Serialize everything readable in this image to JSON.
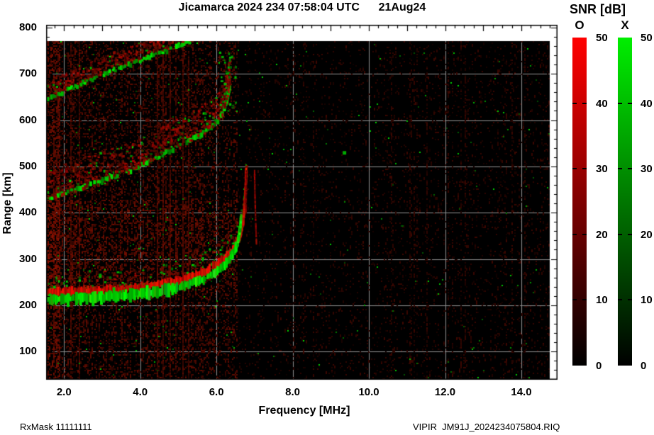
{
  "title": "Jicamarca 2024 234 07:58:04 UTC      21Aug24",
  "footer": {
    "left": "RxMask 11111111",
    "right": "VIPIR  JM91J_2024234075804.RIQ"
  },
  "colorbar": {
    "title": "SNR [dB]",
    "o_label": "O",
    "x_label": "X",
    "o_color": "#ff0000",
    "x_color": "#00ee00",
    "ticks": [
      0,
      10,
      20,
      30,
      40,
      50
    ],
    "range": [
      0,
      50
    ]
  },
  "chart_data": {
    "type": "heatmap",
    "title": "Jicamarca 2024 234 07:58:04 UTC 21Aug24",
    "xlabel": "Frequency [MHz]",
    "ylabel": "Range [km]",
    "xlim": [
      1.53,
      14.95
    ],
    "ylim": [
      39,
      806
    ],
    "grid": true,
    "background": "#000000",
    "grid_color": "#909090",
    "x_ticks": [
      {
        "v": 2,
        "label": "2.0"
      },
      {
        "v": 4,
        "label": "4.0"
      },
      {
        "v": 6,
        "label": "6.0"
      },
      {
        "v": 8,
        "label": "8.0"
      },
      {
        "v": 10,
        "label": "10.0"
      },
      {
        "v": 12,
        "label": "12.0"
      },
      {
        "v": 14,
        "label": "14.0"
      }
    ],
    "y_ticks": [
      {
        "v": 100,
        "label": "100"
      },
      {
        "v": 200,
        "label": "200"
      },
      {
        "v": 300,
        "label": "300"
      },
      {
        "v": 400,
        "label": "400"
      },
      {
        "v": 500,
        "label": "500"
      },
      {
        "v": 600,
        "label": "600"
      },
      {
        "v": 700,
        "label": "700"
      },
      {
        "v": 800,
        "label": "800"
      }
    ],
    "colors": {
      "o_mode": "#ff0000",
      "x_mode": "#00ee00"
    },
    "data_extent": {
      "freq_mhz": [
        1.53,
        14.75
      ],
      "range_km": [
        39,
        770
      ]
    },
    "traces": {
      "hop1_x_green": [
        [
          1.53,
          213
        ],
        [
          2.0,
          215
        ],
        [
          2.6,
          216
        ],
        [
          3.2,
          219
        ],
        [
          3.8,
          223
        ],
        [
          4.4,
          229
        ],
        [
          4.9,
          236
        ],
        [
          5.3,
          246
        ],
        [
          5.7,
          258
        ],
        [
          6.0,
          272
        ],
        [
          6.25,
          290
        ],
        [
          6.45,
          313
        ],
        [
          6.55,
          333
        ],
        [
          6.62,
          362
        ],
        [
          6.65,
          393
        ]
      ],
      "hop1_o_red": [
        [
          1.53,
          227
        ],
        [
          2.0,
          229
        ],
        [
          2.6,
          231
        ],
        [
          3.2,
          233
        ],
        [
          3.8,
          237
        ],
        [
          4.4,
          243
        ],
        [
          4.9,
          251
        ],
        [
          5.3,
          261
        ],
        [
          5.7,
          273
        ],
        [
          6.0,
          287
        ],
        [
          6.3,
          307
        ],
        [
          6.5,
          327
        ],
        [
          6.62,
          350
        ],
        [
          6.7,
          380
        ],
        [
          6.74,
          415
        ],
        [
          6.77,
          460
        ],
        [
          6.78,
          492
        ]
      ],
      "hop1_o_red_branch2": [
        [
          7.05,
          333
        ],
        [
          7.03,
          380
        ],
        [
          7.01,
          440
        ],
        [
          7.0,
          492
        ]
      ],
      "hop2_edge_green": [
        [
          1.53,
          429
        ],
        [
          2.0,
          442
        ],
        [
          2.5,
          455
        ],
        [
          3.0,
          468
        ],
        [
          3.5,
          482
        ],
        [
          4.0,
          500
        ],
        [
          4.5,
          521
        ],
        [
          5.0,
          543
        ],
        [
          5.4,
          560
        ],
        [
          5.7,
          574
        ],
        [
          5.95,
          589
        ],
        [
          6.1,
          604
        ],
        [
          6.2,
          623
        ],
        [
          6.3,
          650
        ],
        [
          6.36,
          678
        ]
      ],
      "hop3_edge_green": [
        [
          1.53,
          641
        ],
        [
          2.0,
          661
        ],
        [
          2.5,
          680
        ],
        [
          3.0,
          697
        ],
        [
          3.55,
          714
        ],
        [
          4.0,
          729
        ],
        [
          4.4,
          741
        ],
        [
          4.8,
          753
        ],
        [
          5.15,
          764
        ],
        [
          5.35,
          770
        ]
      ],
      "critical_freqs_mhz": {
        "green_tip": 6.65,
        "red_asymptote1": 6.78,
        "red_asymptote2": 7.02
      },
      "bright_spots_green": [
        [
          9.35,
          530
        ]
      ]
    }
  }
}
